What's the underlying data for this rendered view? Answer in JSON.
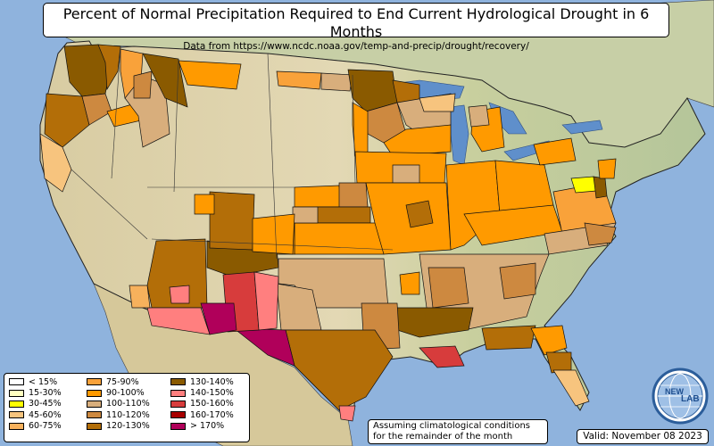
{
  "title": "Percent of Normal Precipitation Required to End Current Hydrological Drought in 6 Months",
  "subtitle": "Data from https://www.ncdc.noaa.gov/temp-and-precip/drought/recovery/",
  "legend": {
    "columns": [
      [
        {
          "label": "< 15%",
          "color": "#ffffff"
        },
        {
          "label": "15-30%",
          "color": "#ffffc0"
        },
        {
          "label": "30-45%",
          "color": "#ffff00"
        },
        {
          "label": "45-60%",
          "color": "#f7c47e"
        },
        {
          "label": "60-75%",
          "color": "#f7b15c"
        }
      ],
      [
        {
          "label": "75-90%",
          "color": "#f9a23a"
        },
        {
          "label": "90-100%",
          "color": "#ff9a00"
        },
        {
          "label": "100-110%",
          "color": "#d8ae7c"
        },
        {
          "label": "110-120%",
          "color": "#cd8940"
        },
        {
          "label": "120-130%",
          "color": "#b36e08"
        }
      ],
      [
        {
          "label": "130-140%",
          "color": "#8a5a00"
        },
        {
          "label": "140-150%",
          "color": "#ff7f7f"
        },
        {
          "label": "150-160%",
          "color": "#d73c3c"
        },
        {
          "label": "160-170%",
          "color": "#a80000"
        },
        {
          "label": "> 170%",
          "color": "#b0005a"
        }
      ]
    ]
  },
  "note": {
    "line1": "Assuming climatological conditions",
    "line2": "for the remainder of the month"
  },
  "valid": "Valid: November 08 2023",
  "logo": {
    "text_left": "NEW",
    "text_right": "LAB",
    "icon": "new-lab-globe-icon"
  },
  "colors": {
    "ocean": "#8fb3dd",
    "terrain_east": "#b9c9a3",
    "terrain_west": "#d9cfa6",
    "great_lakes": "#5f8fcb"
  }
}
